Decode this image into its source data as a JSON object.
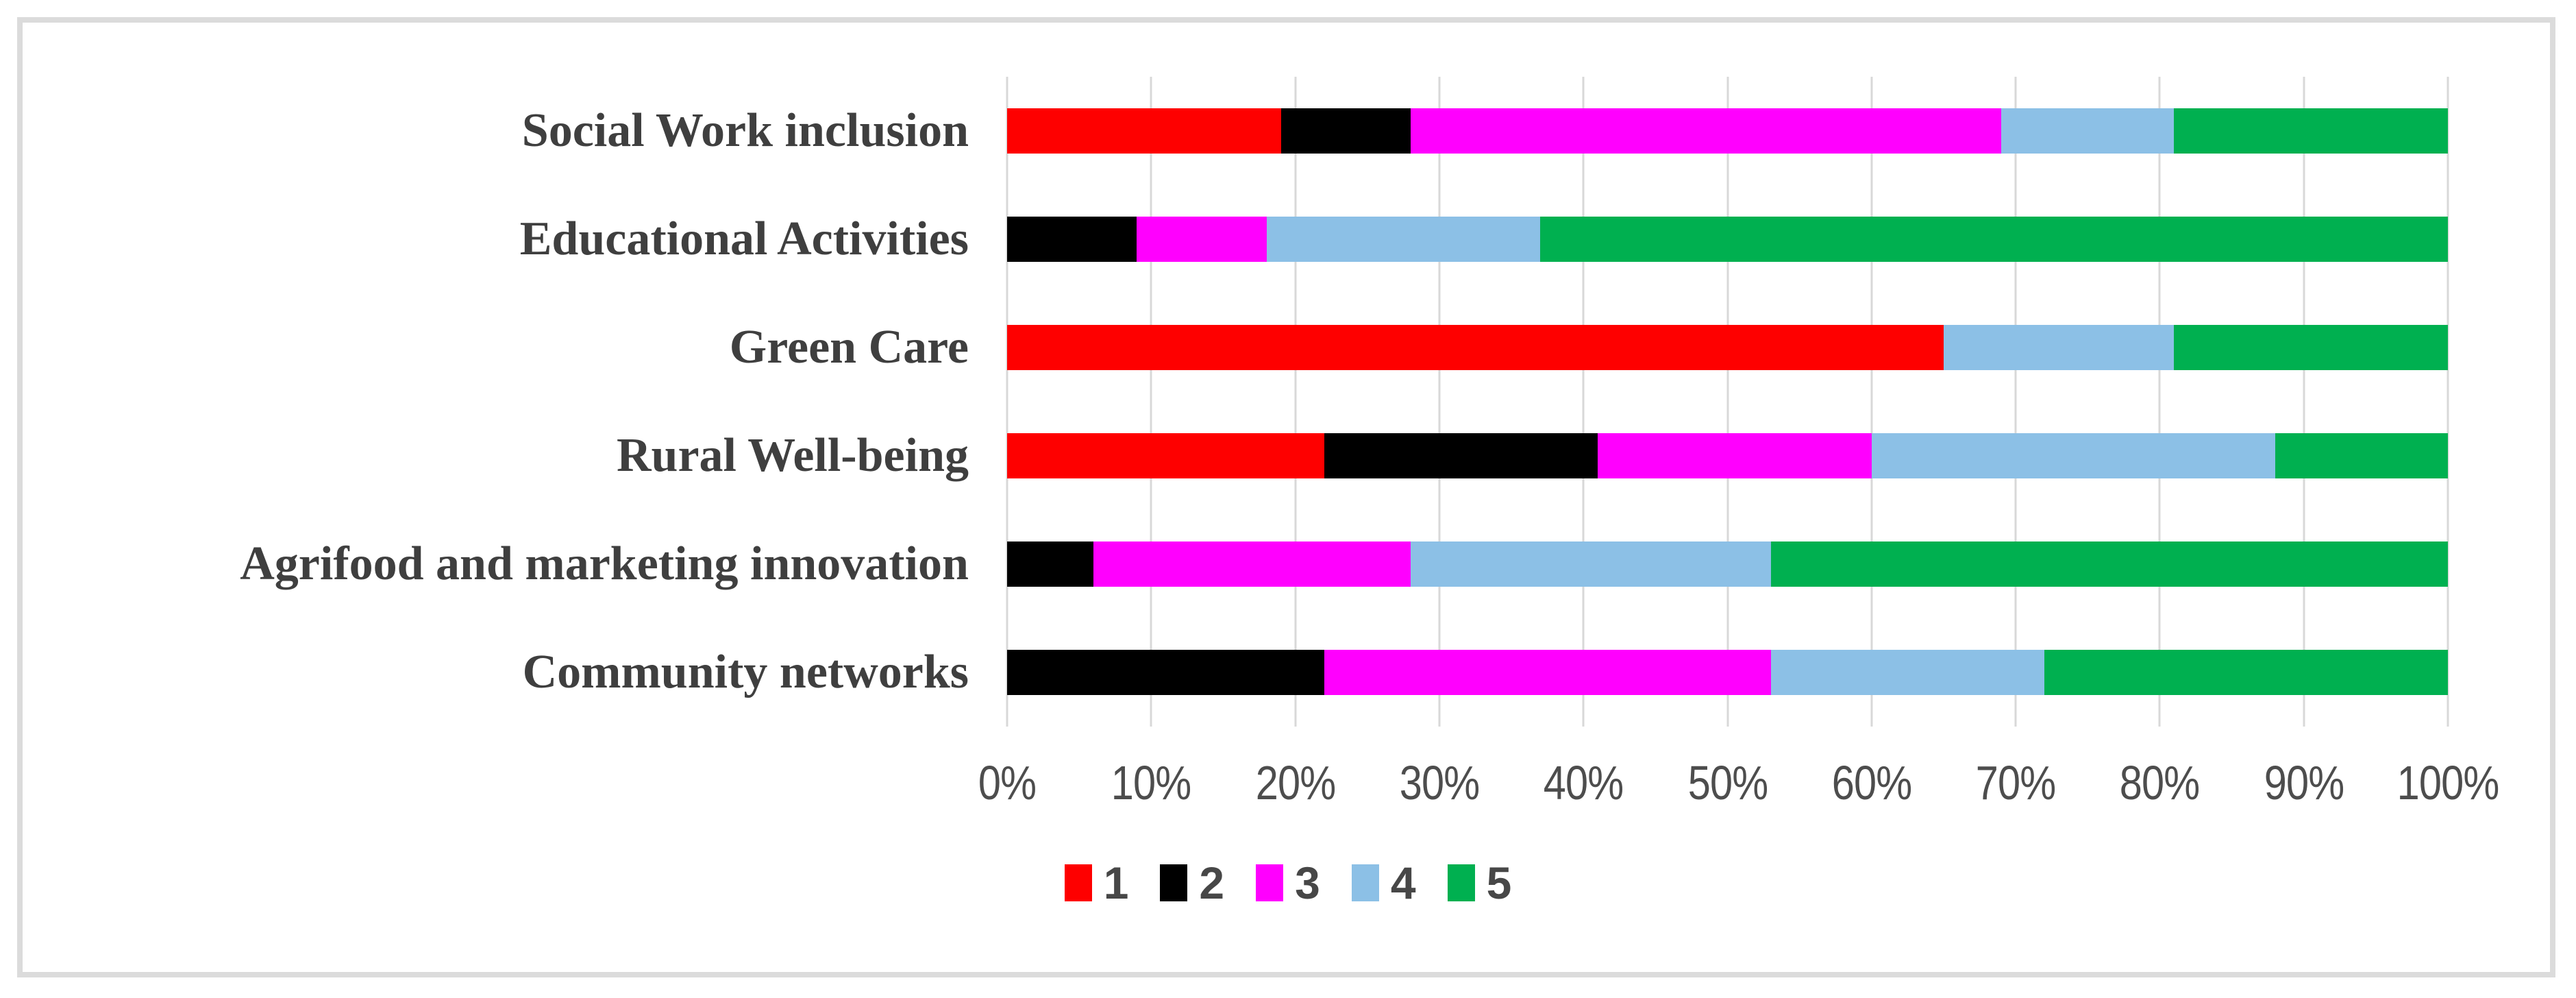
{
  "figure": {
    "description": "100% stacked horizontal bar chart of Likert ratings (1-5) per activity area",
    "title": "",
    "xlabel": "",
    "ylabel": ""
  },
  "chart_data": {
    "type": "bar",
    "orientation": "horizontal",
    "stacked": true,
    "percent_stacked": true,
    "title": "",
    "xlabel": "",
    "ylabel": "",
    "xlim": [
      0,
      100
    ],
    "grid": "vertical-gridlines-on",
    "x_ticks": [
      "0%",
      "10%",
      "20%",
      "30%",
      "40%",
      "50%",
      "60%",
      "70%",
      "80%",
      "90%",
      "100%"
    ],
    "categories": [
      "Social Work inclusion",
      "Educational Activities",
      "Green Care",
      "Rural Well-being",
      "Agrifood and marketing innovation",
      "Community networks"
    ],
    "series": [
      {
        "name": "1",
        "color": "#fe0000",
        "values": [
          19,
          0,
          65,
          22,
          0,
          0
        ]
      },
      {
        "name": "2",
        "color": "#000000",
        "values": [
          9,
          9,
          0,
          19,
          6,
          22
        ]
      },
      {
        "name": "3",
        "color": "#ff00fe",
        "values": [
          41,
          9,
          0,
          19,
          22,
          31
        ]
      },
      {
        "name": "4",
        "color": "#8cc0e6",
        "values": [
          12,
          19,
          16,
          28,
          25,
          19
        ]
      },
      {
        "name": "5",
        "color": "#00b050",
        "values": [
          19,
          63,
          19,
          12,
          47,
          28
        ]
      }
    ],
    "legend": {
      "position": "bottom-center",
      "labels": [
        "1",
        "2",
        "3",
        "4",
        "5"
      ]
    }
  },
  "styles": {
    "frame_border": "#dbdbdb",
    "gridline": "#d8d8d8",
    "category_text": "#3f3f3f",
    "tick_text": "#4d4d4d",
    "legend_text": "#474747",
    "background": "#ffffff"
  }
}
